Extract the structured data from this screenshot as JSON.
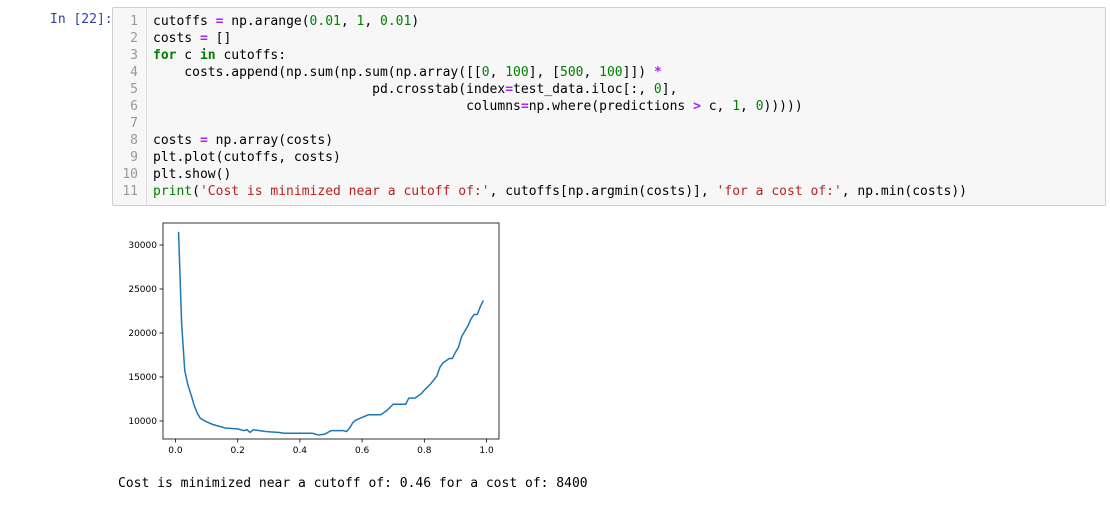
{
  "cell": {
    "prompt": "In [22]:",
    "lines": [
      {
        "n": "1",
        "segs": [
          [
            "",
            "cutoffs "
          ],
          [
            "op",
            "="
          ],
          [
            "",
            " np.arange("
          ],
          [
            "num",
            "0.01"
          ],
          [
            "",
            ", "
          ],
          [
            "num",
            "1"
          ],
          [
            "",
            ", "
          ],
          [
            "num",
            "0.01"
          ],
          [
            "",
            ")"
          ]
        ]
      },
      {
        "n": "2",
        "segs": [
          [
            "",
            "costs "
          ],
          [
            "op",
            "="
          ],
          [
            "",
            " []"
          ]
        ]
      },
      {
        "n": "3",
        "segs": [
          [
            "kw",
            "for"
          ],
          [
            "",
            " c "
          ],
          [
            "kw",
            "in"
          ],
          [
            "",
            " cutoffs:"
          ]
        ]
      },
      {
        "n": "4",
        "segs": [
          [
            "",
            "    costs.append(np.sum(np.sum(np.array([["
          ],
          [
            "num",
            "0"
          ],
          [
            "",
            ", "
          ],
          [
            "num",
            "100"
          ],
          [
            "",
            "], ["
          ],
          [
            "num",
            "500"
          ],
          [
            "",
            ", "
          ],
          [
            "num",
            "100"
          ],
          [
            "",
            "]]) "
          ],
          [
            "op",
            "*"
          ]
        ]
      },
      {
        "n": "5",
        "segs": [
          [
            "",
            "                            pd.crosstab(index"
          ],
          [
            "op",
            "="
          ],
          [
            "",
            "test_data.iloc[:, "
          ],
          [
            "num",
            "0"
          ],
          [
            "",
            "],"
          ]
        ]
      },
      {
        "n": "6",
        "segs": [
          [
            "",
            "                                        columns"
          ],
          [
            "op",
            "="
          ],
          [
            "",
            "np.where(predictions "
          ],
          [
            "op",
            ">"
          ],
          [
            "",
            " c, "
          ],
          [
            "num",
            "1"
          ],
          [
            "",
            ", "
          ],
          [
            "num",
            "0"
          ],
          [
            "",
            ")))))"
          ]
        ]
      },
      {
        "n": "7",
        "segs": []
      },
      {
        "n": "8",
        "segs": [
          [
            "",
            "costs "
          ],
          [
            "op",
            "="
          ],
          [
            "",
            " np.array(costs)"
          ]
        ]
      },
      {
        "n": "9",
        "segs": [
          [
            "",
            "plt.plot(cutoffs, costs)"
          ]
        ]
      },
      {
        "n": "10",
        "segs": [
          [
            "",
            "plt.show()"
          ]
        ]
      },
      {
        "n": "11",
        "segs": [
          [
            "bi",
            "print"
          ],
          [
            "",
            "("
          ],
          [
            "str",
            "'Cost is minimized near a cutoff of:'"
          ],
          [
            "",
            ", cutoffs[np.argmin(costs)], "
          ],
          [
            "str",
            "'for a cost of:'"
          ],
          [
            "",
            ", np.min(costs))"
          ]
        ]
      }
    ]
  },
  "chart_data": {
    "type": "line",
    "title": "",
    "xlabel": "",
    "ylabel": "",
    "xlim": [
      -0.04,
      1.04
    ],
    "ylim": [
      7950,
      32500
    ],
    "xticks": [
      0.0,
      0.2,
      0.4,
      0.6,
      0.8,
      1.0
    ],
    "xtick_labels": [
      "0.0",
      "0.2",
      "0.4",
      "0.6",
      "0.8",
      "1.0"
    ],
    "yticks": [
      10000,
      15000,
      20000,
      25000,
      30000
    ],
    "ytick_labels": [
      "10000",
      "15000",
      "20000",
      "25000",
      "30000"
    ],
    "grid": false,
    "line_color": "#1f77b4",
    "series": [
      {
        "x": [
          0.01,
          0.02,
          0.03,
          0.04,
          0.05,
          0.06,
          0.07,
          0.08,
          0.09,
          0.1,
          0.12,
          0.14,
          0.16,
          0.18,
          0.2,
          0.22,
          0.23,
          0.24,
          0.25,
          0.27,
          0.29,
          0.31,
          0.33,
          0.35,
          0.4,
          0.44,
          0.46,
          0.48,
          0.5,
          0.54,
          0.55,
          0.56,
          0.57,
          0.58,
          0.6,
          0.62,
          0.66,
          0.68,
          0.7,
          0.74,
          0.75,
          0.77,
          0.79,
          0.8,
          0.82,
          0.84,
          0.85,
          0.86,
          0.88,
          0.89,
          0.9,
          0.91,
          0.92,
          0.94,
          0.95,
          0.96,
          0.97,
          0.98,
          0.99
        ],
        "y": [
          31500,
          21000,
          15700,
          14100,
          13000,
          11800,
          10900,
          10300,
          10100,
          9900,
          9600,
          9400,
          9200,
          9150,
          9100,
          8900,
          9000,
          8700,
          9000,
          8900,
          8800,
          8750,
          8700,
          8600,
          8600,
          8600,
          8400,
          8500,
          8900,
          8900,
          8800,
          9200,
          9800,
          10100,
          10400,
          10700,
          10700,
          11200,
          11900,
          11900,
          12600,
          12600,
          13100,
          13500,
          14200,
          15100,
          16100,
          16600,
          17100,
          17100,
          17800,
          18400,
          19600,
          20800,
          21600,
          22100,
          22100,
          23000,
          23700
        ]
      }
    ]
  },
  "output": {
    "text": "Cost is minimized near a cutoff of: 0.46 for a cost of: 8400"
  }
}
